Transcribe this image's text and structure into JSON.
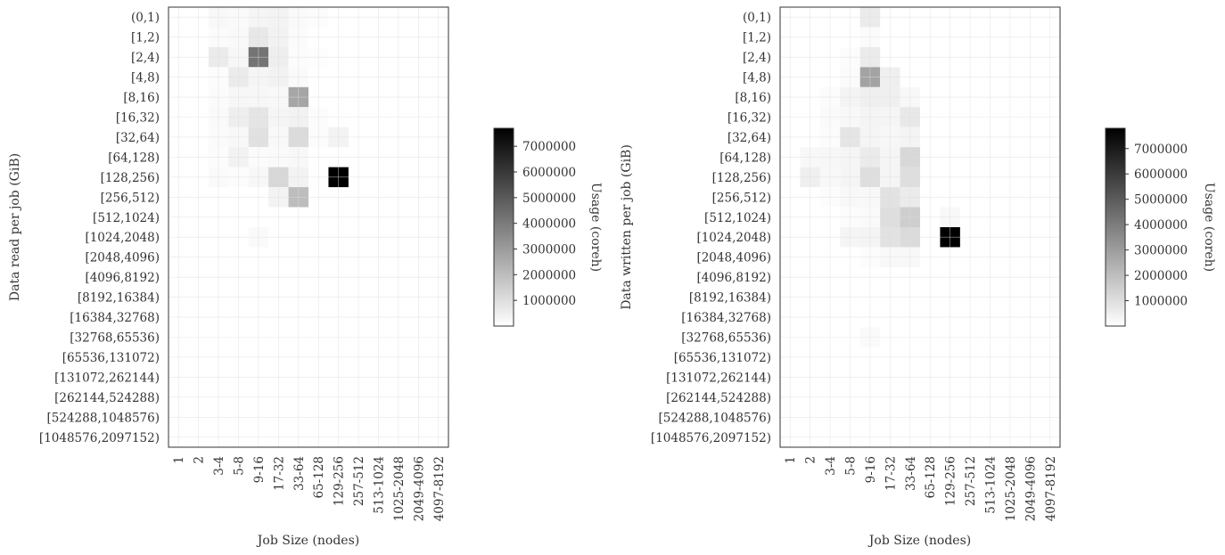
{
  "chart_data": [
    {
      "type": "heatmap",
      "xlabel": "Job Size (nodes)",
      "ylabel": "Data read per job (GiB)",
      "x_categories": [
        "1",
        "2",
        "3-4",
        "5-8",
        "9-16",
        "17-32",
        "33-64",
        "65-128",
        "129-256",
        "257-512",
        "513-1024",
        "1025-2048",
        "2049-4096",
        "4097-8192"
      ],
      "y_categories": [
        "(0,1)",
        "[1,2)",
        "[2,4)",
        "[4,8)",
        "[8,16)",
        "[16,32)",
        "[32,64)",
        "[64,128)",
        "[128,256)",
        "[256,512)",
        "[512,1024)",
        "[1024,2048)",
        "[2048,4096)",
        "[4096,8192)",
        "[8192,16384)",
        "[16384,32768)",
        "[32768,65536)",
        "[65536,131072)",
        "[131072,262144)",
        "[262144,524288)",
        "[524288,1048576)",
        "[1048576,2097152)"
      ],
      "colorbar": {
        "label": "Usage (coreh)",
        "min": 0,
        "max": 7700000,
        "ticks": [
          "1000000",
          "2000000",
          "3000000",
          "4000000",
          "5000000",
          "6000000",
          "7000000"
        ]
      },
      "cells": [
        [
          0,
          2,
          200000
        ],
        [
          0,
          3,
          150000
        ],
        [
          0,
          4,
          300000
        ],
        [
          0,
          5,
          350000
        ],
        [
          0,
          6,
          150000
        ],
        [
          0,
          7,
          80000
        ],
        [
          1,
          2,
          120000
        ],
        [
          1,
          3,
          180000
        ],
        [
          1,
          4,
          700000
        ],
        [
          1,
          5,
          400000
        ],
        [
          1,
          6,
          120000
        ],
        [
          2,
          2,
          600000
        ],
        [
          2,
          3,
          250000
        ],
        [
          2,
          4,
          4200000
        ],
        [
          2,
          5,
          500000
        ],
        [
          2,
          6,
          80000
        ],
        [
          2,
          7,
          60000
        ],
        [
          3,
          2,
          100000
        ],
        [
          3,
          3,
          600000
        ],
        [
          3,
          4,
          300000
        ],
        [
          3,
          5,
          400000
        ],
        [
          3,
          6,
          150000
        ],
        [
          4,
          2,
          120000
        ],
        [
          4,
          3,
          250000
        ],
        [
          4,
          4,
          250000
        ],
        [
          4,
          5,
          200000
        ],
        [
          4,
          6,
          2700000
        ],
        [
          5,
          2,
          150000
        ],
        [
          5,
          3,
          500000
        ],
        [
          5,
          4,
          800000
        ],
        [
          5,
          5,
          300000
        ],
        [
          5,
          6,
          400000
        ],
        [
          5,
          7,
          100000
        ],
        [
          6,
          2,
          120000
        ],
        [
          6,
          3,
          200000
        ],
        [
          6,
          4,
          900000
        ],
        [
          6,
          5,
          200000
        ],
        [
          6,
          6,
          1100000
        ],
        [
          6,
          7,
          80000
        ],
        [
          6,
          8,
          350000
        ],
        [
          7,
          2,
          100000
        ],
        [
          7,
          3,
          400000
        ],
        [
          7,
          4,
          120000
        ],
        [
          7,
          5,
          150000
        ],
        [
          7,
          6,
          200000
        ],
        [
          8,
          2,
          150000
        ],
        [
          8,
          3,
          100000
        ],
        [
          8,
          4,
          250000
        ],
        [
          8,
          5,
          1200000
        ],
        [
          8,
          6,
          350000
        ],
        [
          8,
          8,
          7700000
        ],
        [
          9,
          5,
          350000
        ],
        [
          9,
          6,
          2000000
        ],
        [
          11,
          4,
          150000
        ]
      ]
    },
    {
      "type": "heatmap",
      "xlabel": "Job Size (nodes)",
      "ylabel": "Data written per job (GiB)",
      "x_categories": [
        "1",
        "2",
        "3-4",
        "5-8",
        "9-16",
        "17-32",
        "33-64",
        "65-128",
        "129-256",
        "257-512",
        "513-1024",
        "1025-2048",
        "2049-4096",
        "4097-8192"
      ],
      "y_categories": [
        "(0,1)",
        "[1,2)",
        "[2,4)",
        "[4,8)",
        "[8,16)",
        "[16,32)",
        "[32,64)",
        "[64,128)",
        "[128,256)",
        "[256,512)",
        "[512,1024)",
        "[1024,2048)",
        "[2048,4096)",
        "[4096,8192)",
        "[8192,16384)",
        "[16384,32768)",
        "[32768,65536)",
        "[65536,131072)",
        "[131072,262144)",
        "[262144,524288)",
        "[524288,1048576)",
        "[1048576,2097152)"
      ],
      "colorbar": {
        "label": "Usage (coreh)",
        "min": 0,
        "max": 7800000,
        "ticks": [
          "1000000",
          "2000000",
          "3000000",
          "4000000",
          "5000000",
          "6000000",
          "7000000"
        ]
      },
      "cells": [
        [
          0,
          4,
          600000
        ],
        [
          1,
          4,
          120000
        ],
        [
          2,
          3,
          80000
        ],
        [
          2,
          4,
          600000
        ],
        [
          3,
          3,
          120000
        ],
        [
          3,
          4,
          2800000
        ],
        [
          3,
          5,
          500000
        ],
        [
          4,
          2,
          100000
        ],
        [
          4,
          3,
          350000
        ],
        [
          4,
          4,
          500000
        ],
        [
          4,
          5,
          500000
        ],
        [
          4,
          6,
          200000
        ],
        [
          5,
          2,
          150000
        ],
        [
          5,
          3,
          200000
        ],
        [
          5,
          4,
          350000
        ],
        [
          5,
          5,
          300000
        ],
        [
          5,
          6,
          700000
        ],
        [
          6,
          2,
          100000
        ],
        [
          6,
          3,
          800000
        ],
        [
          6,
          4,
          300000
        ],
        [
          6,
          5,
          250000
        ],
        [
          6,
          6,
          350000
        ],
        [
          7,
          1,
          200000
        ],
        [
          7,
          2,
          250000
        ],
        [
          7,
          3,
          300000
        ],
        [
          7,
          4,
          600000
        ],
        [
          7,
          5,
          300000
        ],
        [
          7,
          6,
          1200000
        ],
        [
          8,
          1,
          500000
        ],
        [
          8,
          2,
          200000
        ],
        [
          8,
          3,
          300000
        ],
        [
          8,
          4,
          1000000
        ],
        [
          8,
          5,
          300000
        ],
        [
          8,
          6,
          1000000
        ],
        [
          9,
          2,
          100000
        ],
        [
          9,
          3,
          200000
        ],
        [
          9,
          4,
          200000
        ],
        [
          9,
          5,
          900000
        ],
        [
          9,
          6,
          600000
        ],
        [
          10,
          3,
          100000
        ],
        [
          10,
          4,
          150000
        ],
        [
          10,
          5,
          1000000
        ],
        [
          10,
          6,
          1500000
        ],
        [
          10,
          8,
          200000
        ],
        [
          11,
          3,
          300000
        ],
        [
          11,
          4,
          350000
        ],
        [
          11,
          5,
          900000
        ],
        [
          11,
          6,
          1100000
        ],
        [
          11,
          8,
          7800000
        ],
        [
          12,
          4,
          100000
        ],
        [
          12,
          5,
          200000
        ],
        [
          12,
          6,
          200000
        ],
        [
          16,
          4,
          150000
        ]
      ]
    }
  ]
}
